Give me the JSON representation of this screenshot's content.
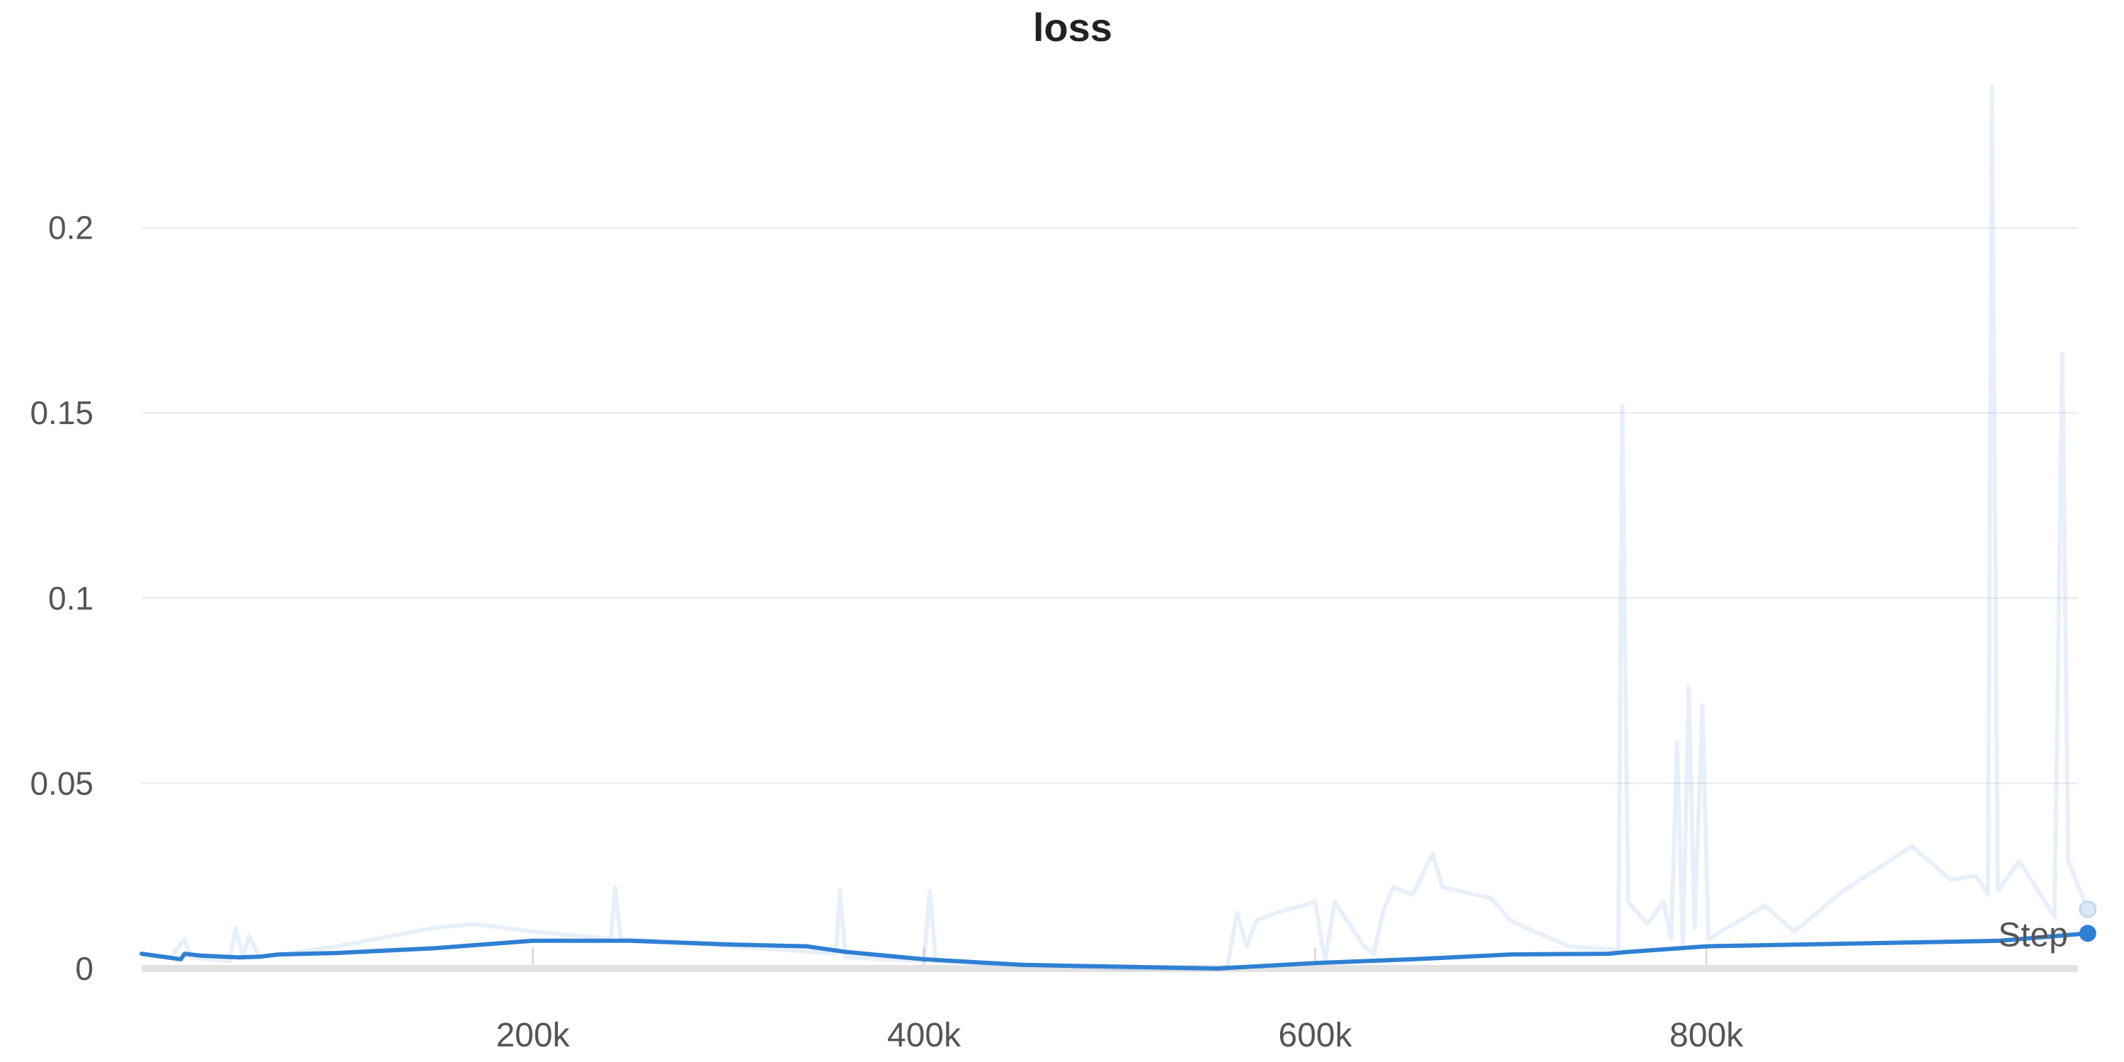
{
  "chart_data": {
    "type": "line",
    "title": "loss",
    "xlabel": "",
    "ylabel": "",
    "xlim": [
      0,
      990000
    ],
    "ylim": [
      0,
      0.25
    ],
    "grid": true,
    "x_ticks": [
      {
        "value": 200000,
        "label": "200k"
      },
      {
        "value": 400000,
        "label": "400k"
      },
      {
        "value": 600000,
        "label": "600k"
      },
      {
        "value": 800000,
        "label": "800k"
      }
    ],
    "y_ticks": [
      {
        "value": 0,
        "label": "0"
      },
      {
        "value": 0.05,
        "label": "0.05"
      },
      {
        "value": 0.1,
        "label": "0.1"
      },
      {
        "value": 0.15,
        "label": "0.15"
      },
      {
        "value": 0.2,
        "label": "0.2"
      }
    ],
    "hover_label": "Step",
    "series": [
      {
        "role": "raw",
        "color": "#3b87d4",
        "points": [
          [
            0,
            0.004
          ],
          [
            15000,
            0.003
          ],
          [
            22000,
            0.008
          ],
          [
            25000,
            0.003
          ],
          [
            45000,
            0.002
          ],
          [
            48000,
            0.011
          ],
          [
            52000,
            0.003
          ],
          [
            55000,
            0.009
          ],
          [
            60000,
            0.003
          ],
          [
            100000,
            0.006
          ],
          [
            130000,
            0.009
          ],
          [
            150000,
            0.011
          ],
          [
            170000,
            0.012
          ],
          [
            200000,
            0.01
          ],
          [
            220000,
            0.009
          ],
          [
            240000,
            0.008
          ],
          [
            242000,
            0.022
          ],
          [
            245000,
            0.008
          ],
          [
            300000,
            0.006
          ],
          [
            330000,
            0.005
          ],
          [
            355000,
            0.004
          ],
          [
            357000,
            0.021
          ],
          [
            360000,
            0.003
          ],
          [
            400000,
            0.002
          ],
          [
            403000,
            0.021
          ],
          [
            406000,
            0.002
          ],
          [
            450000,
            0.001
          ],
          [
            500000,
            0.0
          ],
          [
            555000,
            0.0
          ],
          [
            560000,
            0.015
          ],
          [
            565000,
            0.006
          ],
          [
            570000,
            0.013
          ],
          [
            580000,
            0.015
          ],
          [
            600000,
            0.018
          ],
          [
            605000,
            0.002
          ],
          [
            610000,
            0.018
          ],
          [
            625000,
            0.006
          ],
          [
            630000,
            0.004
          ],
          [
            635000,
            0.016
          ],
          [
            640000,
            0.022
          ],
          [
            650000,
            0.02
          ],
          [
            660000,
            0.031
          ],
          [
            665000,
            0.022
          ],
          [
            690000,
            0.019
          ],
          [
            700000,
            0.013
          ],
          [
            712000,
            0.01
          ],
          [
            730000,
            0.006
          ],
          [
            755000,
            0.005
          ],
          [
            757000,
            0.152
          ],
          [
            760000,
            0.018
          ],
          [
            770000,
            0.012
          ],
          [
            778000,
            0.018
          ],
          [
            782000,
            0.008
          ],
          [
            785000,
            0.061
          ],
          [
            788000,
            0.005
          ],
          [
            791000,
            0.076
          ],
          [
            794000,
            0.011
          ],
          [
            798000,
            0.071
          ],
          [
            801000,
            0.008
          ],
          [
            830000,
            0.017
          ],
          [
            845000,
            0.01
          ],
          [
            870000,
            0.021
          ],
          [
            905000,
            0.033
          ],
          [
            925000,
            0.024
          ],
          [
            938000,
            0.025
          ],
          [
            944000,
            0.02
          ],
          [
            946000,
            0.238
          ],
          [
            949000,
            0.021
          ],
          [
            960000,
            0.029
          ],
          [
            978000,
            0.014
          ],
          [
            982000,
            0.166
          ],
          [
            985000,
            0.029
          ],
          [
            995000,
            0.016
          ]
        ]
      },
      {
        "role": "smoothed",
        "color": "#2f80d3",
        "points": [
          [
            0,
            0.004
          ],
          [
            20000,
            0.0025
          ],
          [
            22000,
            0.004
          ],
          [
            30000,
            0.0035
          ],
          [
            50000,
            0.003
          ],
          [
            60000,
            0.0032
          ],
          [
            70000,
            0.0038
          ],
          [
            100000,
            0.0042
          ],
          [
            150000,
            0.0055
          ],
          [
            200000,
            0.0075
          ],
          [
            250000,
            0.0075
          ],
          [
            300000,
            0.0065
          ],
          [
            340000,
            0.006
          ],
          [
            360000,
            0.0045
          ],
          [
            400000,
            0.0025
          ],
          [
            450000,
            0.001
          ],
          [
            500000,
            0.0005
          ],
          [
            550000,
            0.0
          ],
          [
            600000,
            0.0015
          ],
          [
            650000,
            0.0025
          ],
          [
            700000,
            0.0038
          ],
          [
            750000,
            0.004
          ],
          [
            760000,
            0.0045
          ],
          [
            800000,
            0.006
          ],
          [
            850000,
            0.0065
          ],
          [
            900000,
            0.007
          ],
          [
            950000,
            0.0075
          ],
          [
            995000,
            0.0095
          ]
        ]
      }
    ]
  }
}
